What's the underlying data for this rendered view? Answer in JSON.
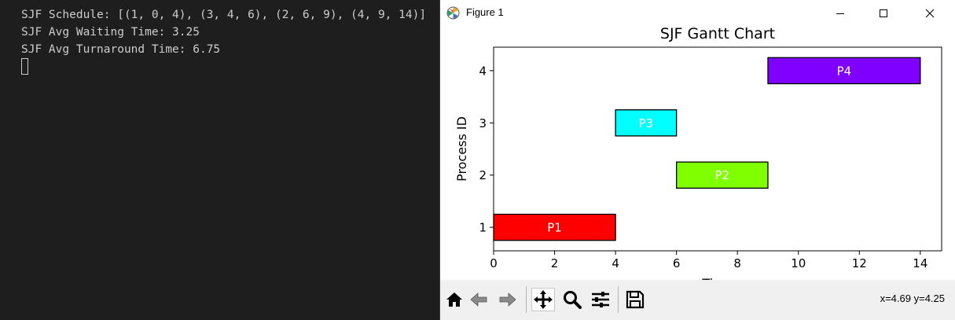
{
  "terminal": {
    "lines": [
      "SJF Schedule: [(1, 0, 4), (3, 4, 6), (2, 6, 9), (4, 9, 14)]",
      "SJF Avg Waiting Time: 3.25",
      "SJF Avg Turnaround Time: 6.75"
    ]
  },
  "window": {
    "title": "Figure 1"
  },
  "toolbar": {
    "coordinates": "x=4.69 y=4.25",
    "tools": [
      "home-icon",
      "back-icon",
      "forward-icon",
      "pan-icon",
      "zoom-icon",
      "configure-subplots-icon",
      "save-icon"
    ]
  },
  "chart_data": {
    "type": "bar",
    "orientation": "horizontal",
    "title": "SJF Gantt Chart",
    "xlabel": "Time",
    "ylabel": "Process ID",
    "xlim": [
      0,
      14.7
    ],
    "ylim": [
      0.55,
      4.45
    ],
    "xticks": [
      "0",
      "2",
      "4",
      "6",
      "8",
      "10",
      "12",
      "14"
    ],
    "yticks": [
      "1",
      "2",
      "3",
      "4"
    ],
    "bars": [
      {
        "label": "P1",
        "process": 1,
        "start": 0,
        "end": 4,
        "color": "#ff0000"
      },
      {
        "label": "P2",
        "process": 2,
        "start": 6,
        "end": 9,
        "color": "#80ff00"
      },
      {
        "label": "P3",
        "process": 3,
        "start": 4,
        "end": 6,
        "color": "#00ffff"
      },
      {
        "label": "P4",
        "process": 4,
        "start": 9,
        "end": 14,
        "color": "#8000ff"
      }
    ],
    "grid": false
  }
}
